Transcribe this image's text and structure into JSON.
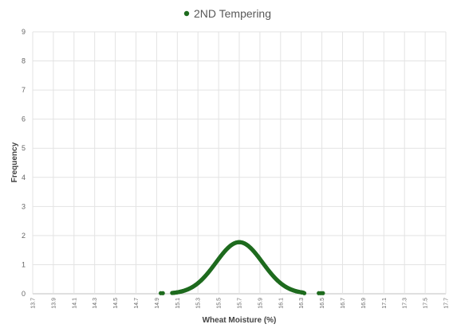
{
  "chart_data": {
    "type": "scatter",
    "title": "",
    "xlabel": "Wheat Moisture (%)",
    "ylabel": "Frequency",
    "xlim": [
      13.7,
      17.7
    ],
    "ylim": [
      0,
      9
    ],
    "x_ticks": [
      "13.7",
      "13.9",
      "14.1",
      "14.3",
      "14.5",
      "14.7",
      "14.9",
      "15.1",
      "15.3",
      "15.5",
      "15.7",
      "15.9",
      "16.1",
      "16.3",
      "16.5",
      "16.7",
      "16.9",
      "17.1",
      "17.3",
      "17.5",
      "17.7"
    ],
    "y_ticks": [
      "0",
      "1",
      "2",
      "3",
      "4",
      "5",
      "6",
      "7",
      "8",
      "9"
    ],
    "grid": true,
    "legend_position": "top-center",
    "series": [
      {
        "name": "2ND Tempering",
        "color": "#1e6b1e",
        "distribution": {
          "mean": 15.7,
          "sd": 0.225,
          "x_start": 15.05,
          "x_end": 16.32,
          "step": 0.005
        },
        "points": [
          {
            "x": 14.94,
            "y": 0.02
          },
          {
            "x": 14.96,
            "y": 0.02
          },
          {
            "x": 16.33,
            "y": 0.02
          },
          {
            "x": 16.47,
            "y": 0.02
          },
          {
            "x": 16.49,
            "y": 0.02
          },
          {
            "x": 16.51,
            "y": 0.02
          }
        ]
      }
    ]
  }
}
